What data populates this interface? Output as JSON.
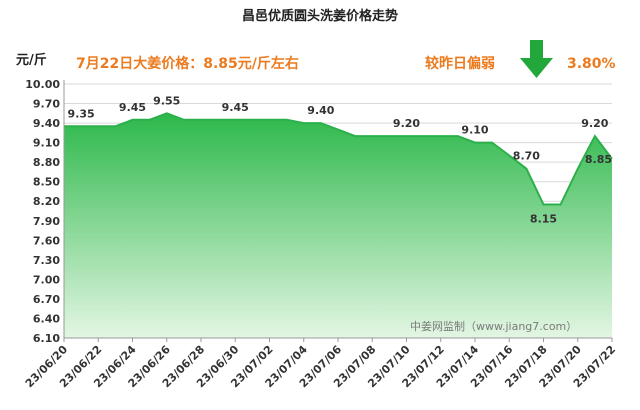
{
  "chart_data": {
    "type": "area",
    "title": "昌邑优质圆头洗姜价格走势",
    "ylabel": "元/斤",
    "ylim": [
      6.1,
      10.0
    ],
    "yticks": [
      "10.00",
      "9.70",
      "9.40",
      "9.10",
      "8.80",
      "8.50",
      "8.20",
      "7.90",
      "7.60",
      "7.30",
      "7.00",
      "6.70",
      "6.40",
      "6.10"
    ],
    "xticks": [
      "23/06/20",
      "23/06/22",
      "23/06/24",
      "23/06/26",
      "23/06/28",
      "23/06/30",
      "23/07/02",
      "23/07/04",
      "23/07/06",
      "23/07/08",
      "23/07/10",
      "23/07/12",
      "23/07/14",
      "23/07/16",
      "23/07/18",
      "23/07/20",
      "23/07/22"
    ],
    "x": [
      "23/06/20",
      "23/06/21",
      "23/06/22",
      "23/06/23",
      "23/06/24",
      "23/06/25",
      "23/06/26",
      "23/06/27",
      "23/06/28",
      "23/06/29",
      "23/06/30",
      "23/07/01",
      "23/07/02",
      "23/07/03",
      "23/07/04",
      "23/07/05",
      "23/07/06",
      "23/07/07",
      "23/07/08",
      "23/07/09",
      "23/07/10",
      "23/07/11",
      "23/07/12",
      "23/07/13",
      "23/07/14",
      "23/07/15",
      "23/07/16",
      "23/07/17",
      "23/07/18",
      "23/07/19",
      "23/07/20",
      "23/07/21",
      "23/07/22"
    ],
    "values": [
      9.35,
      9.35,
      9.35,
      9.35,
      9.45,
      9.45,
      9.55,
      9.45,
      9.45,
      9.45,
      9.45,
      9.45,
      9.45,
      9.45,
      9.4,
      9.4,
      9.3,
      9.2,
      9.2,
      9.2,
      9.2,
      9.2,
      9.2,
      9.2,
      9.1,
      9.1,
      8.9,
      8.7,
      8.15,
      8.15,
      8.7,
      9.2,
      8.85
    ],
    "data_labels": [
      {
        "x": "23/06/21",
        "text": "9.35"
      },
      {
        "x": "23/06/24",
        "text": "9.45"
      },
      {
        "x": "23/06/26",
        "text": "9.55"
      },
      {
        "x": "23/06/30",
        "text": "9.45"
      },
      {
        "x": "23/07/05",
        "text": "9.40"
      },
      {
        "x": "23/07/10",
        "text": "9.20"
      },
      {
        "x": "23/07/14",
        "text": "9.10"
      },
      {
        "x": "23/07/17",
        "text": "8.70"
      },
      {
        "x": "23/07/18",
        "text": "8.15"
      },
      {
        "x": "23/07/21",
        "text": "9.20"
      },
      {
        "x": "23/07/22",
        "text": "8.85"
      }
    ],
    "colors": {
      "line": "#2db04b",
      "fill_top": "#2cb84a",
      "fill_bottom": "#e3f6e3",
      "arrow": "#22a83a",
      "annotation": "#ec7b1f"
    }
  },
  "annotations": {
    "price_text": "7月22日大姜价格：8.85元/斤左右",
    "compare_text": "较昨日偏弱",
    "change_pct": "3.80%",
    "arrow_icon": "down-arrow-icon"
  },
  "watermark": "中姜网监制（www.jiang7.com）"
}
